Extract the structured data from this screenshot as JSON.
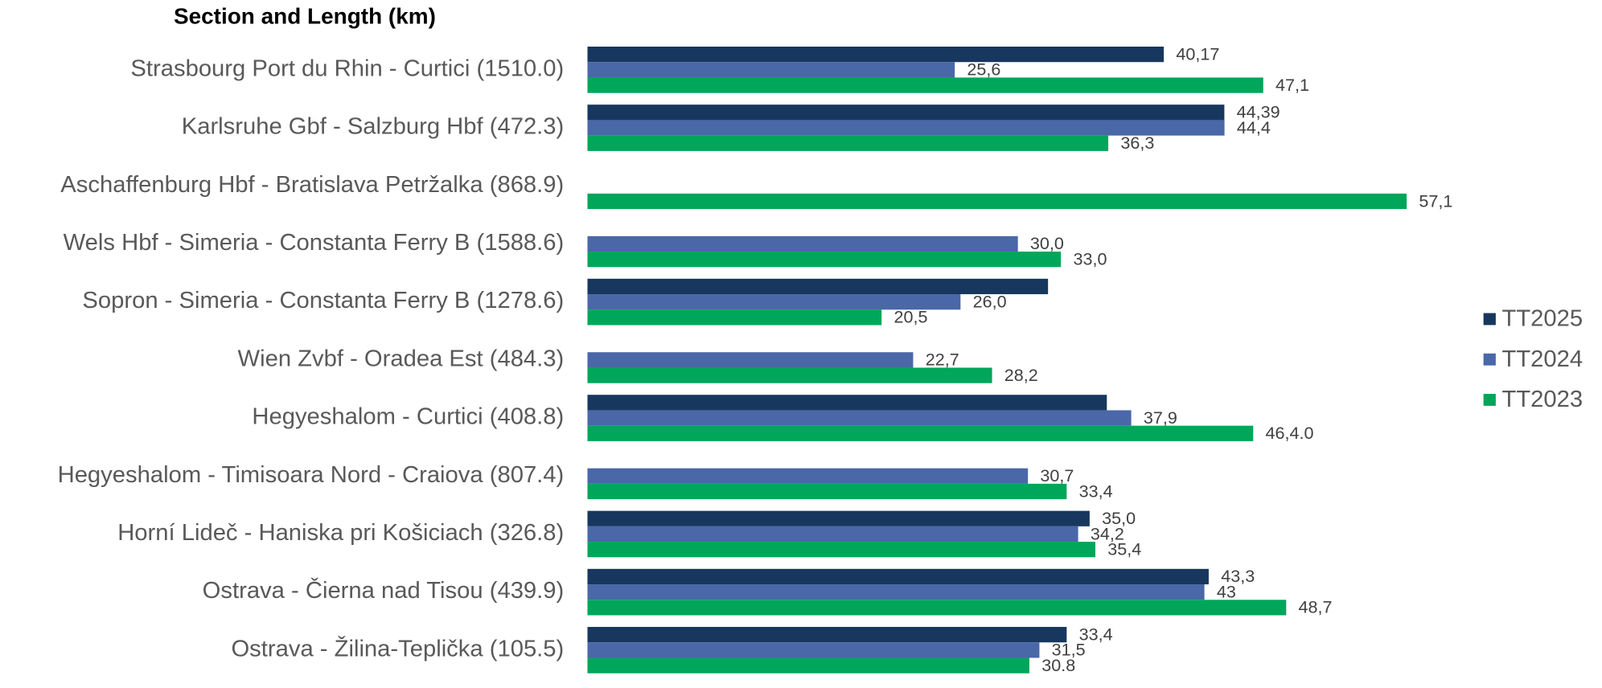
{
  "chart_data": {
    "type": "hbar",
    "title": "Section and Length (km)",
    "categories": [
      "Strasbourg Port du Rhin - Curtici (1510.0)",
      "Karlsruhe Gbf - Salzburg Hbf (472.3)",
      "Aschaffenburg Hbf - Bratislava Petržalka (868.9)",
      "Wels Hbf - Simeria - Constanta Ferry B (1588.6)",
      "Sopron - Simeria - Constanta Ferry B (1278.6)",
      "Wien Zvbf - Oradea Est (484.3)",
      "Hegyeshalom - Curtici (408.8)",
      "Hegyeshalom - Timisoara Nord - Craiova (807.4)",
      "Horní Lideč - Haniska pri Košiciach (326.8)",
      "Ostrava - Čierna nad Tisou (439.9)",
      "Ostrava - Žilina-Teplička (105.5)"
    ],
    "series": [
      {
        "name": "TT2025",
        "color": "#17375e",
        "values": [
          40.17,
          44.39,
          null,
          null,
          32.1,
          null,
          36.2,
          null,
          35.0,
          43.3,
          33.4
        ],
        "value_labels": [
          "40,17",
          "44,39",
          null,
          null,
          null,
          null,
          null,
          null,
          "35,0",
          "43,3",
          "33,4"
        ]
      },
      {
        "name": "TT2024",
        "color": "#4a67a8",
        "values": [
          25.6,
          44.4,
          null,
          30.0,
          26.0,
          22.7,
          37.9,
          30.7,
          34.2,
          43,
          31.5
        ],
        "value_labels": [
          "25,6",
          "44,4",
          null,
          "30,0",
          "26,0",
          "22,7",
          "37,9",
          "30,7",
          "34,2",
          "43",
          "31,5"
        ]
      },
      {
        "name": "TT2023",
        "color": "#00a65a",
        "values": [
          47.1,
          36.3,
          57.1,
          33.0,
          20.5,
          28.2,
          46.4,
          33.4,
          35.4,
          48.7,
          30.8
        ],
        "value_labels": [
          "47,1",
          "36,3",
          "57,1",
          "33,0",
          "20,5",
          "28,2",
          "46,4.0",
          "33,4",
          "35,4",
          "48,7",
          "30.8"
        ]
      }
    ],
    "xlim": [
      0,
      70
    ],
    "legend": "right"
  }
}
